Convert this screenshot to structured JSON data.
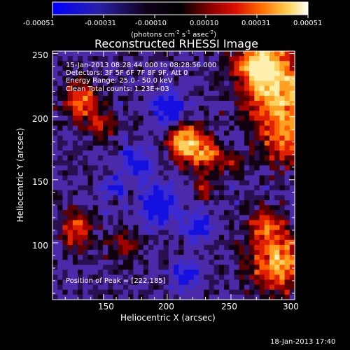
{
  "colorbar": {
    "tick_labels": [
      "-0.00051",
      "-0.00031",
      "-0.00010",
      "0.00010",
      "0.00031",
      "0.00051"
    ],
    "units_prefix": "(photons cm",
    "units_sup1": "-2",
    "units_mid": " s",
    "units_sup2": "-1",
    "units_mid2": " asec",
    "units_sup3": "-2",
    "units_suffix": ")",
    "range": [
      -0.00051,
      0.00051
    ],
    "colors": [
      "#0000ff",
      "#1a1aa0",
      "#000000",
      "#6a0000",
      "#cc0000",
      "#ff4000",
      "#ff9000",
      "#ffe070",
      "#ffffff"
    ]
  },
  "plot": {
    "title": "Reconstructed RHESSI Image",
    "xlabel": "Heliocentric X (arcsec)",
    "ylabel": "Heliocentric Y (arcsec)",
    "x_ticks": [
      "150",
      "200",
      "250",
      "300"
    ],
    "y_ticks": [
      "100",
      "150",
      "200",
      "250"
    ],
    "x_range": [
      110,
      300
    ],
    "y_range": [
      55,
      252
    ],
    "annotations": {
      "time": "15-Jan-2013 08:28:44.000 to 08:28:56.000",
      "detectors": "Detectors: 3F 5F 6F 7F 8F 9F, Att 0",
      "energy": "Energy Range: 25.0 - 50.0 keV",
      "algorithm": "Clean     Total counts: 1.23E+03",
      "peak": "Position of Peak = [222,185]"
    }
  },
  "footer": {
    "timestamp": "18-Jan-2013 17:40"
  }
}
